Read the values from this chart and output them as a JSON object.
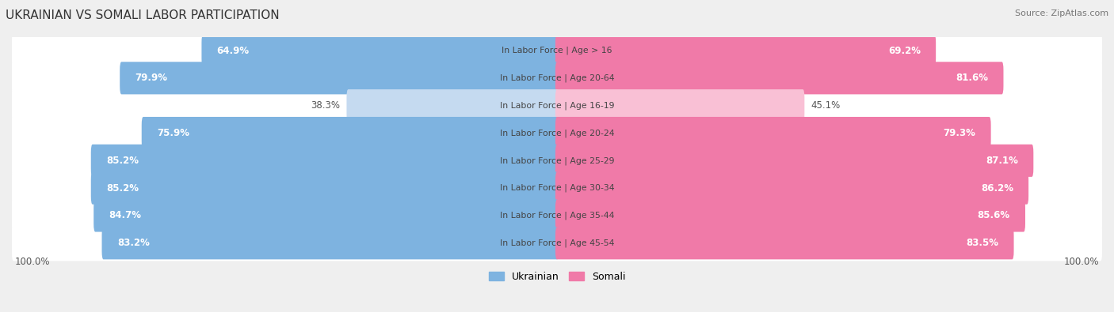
{
  "title": "UKRAINIAN VS SOMALI LABOR PARTICIPATION",
  "source": "Source: ZipAtlas.com",
  "categories": [
    "In Labor Force | Age > 16",
    "In Labor Force | Age 20-64",
    "In Labor Force | Age 16-19",
    "In Labor Force | Age 20-24",
    "In Labor Force | Age 25-29",
    "In Labor Force | Age 30-34",
    "In Labor Force | Age 35-44",
    "In Labor Force | Age 45-54"
  ],
  "ukrainian": [
    64.9,
    79.9,
    38.3,
    75.9,
    85.2,
    85.2,
    84.7,
    83.2
  ],
  "somali": [
    69.2,
    81.6,
    45.1,
    79.3,
    87.1,
    86.2,
    85.6,
    83.5
  ],
  "ukrainian_color": "#7eb3e0",
  "ukrainian_color_light": "#c5daf0",
  "somali_color": "#f07aa8",
  "somali_color_light": "#f9c0d5",
  "bg_color": "#efefef",
  "row_bg": "#ffffff",
  "bar_height": 0.58,
  "max_val": 100.0,
  "legend_ukrainian": "Ukrainian",
  "legend_somali": "Somali"
}
